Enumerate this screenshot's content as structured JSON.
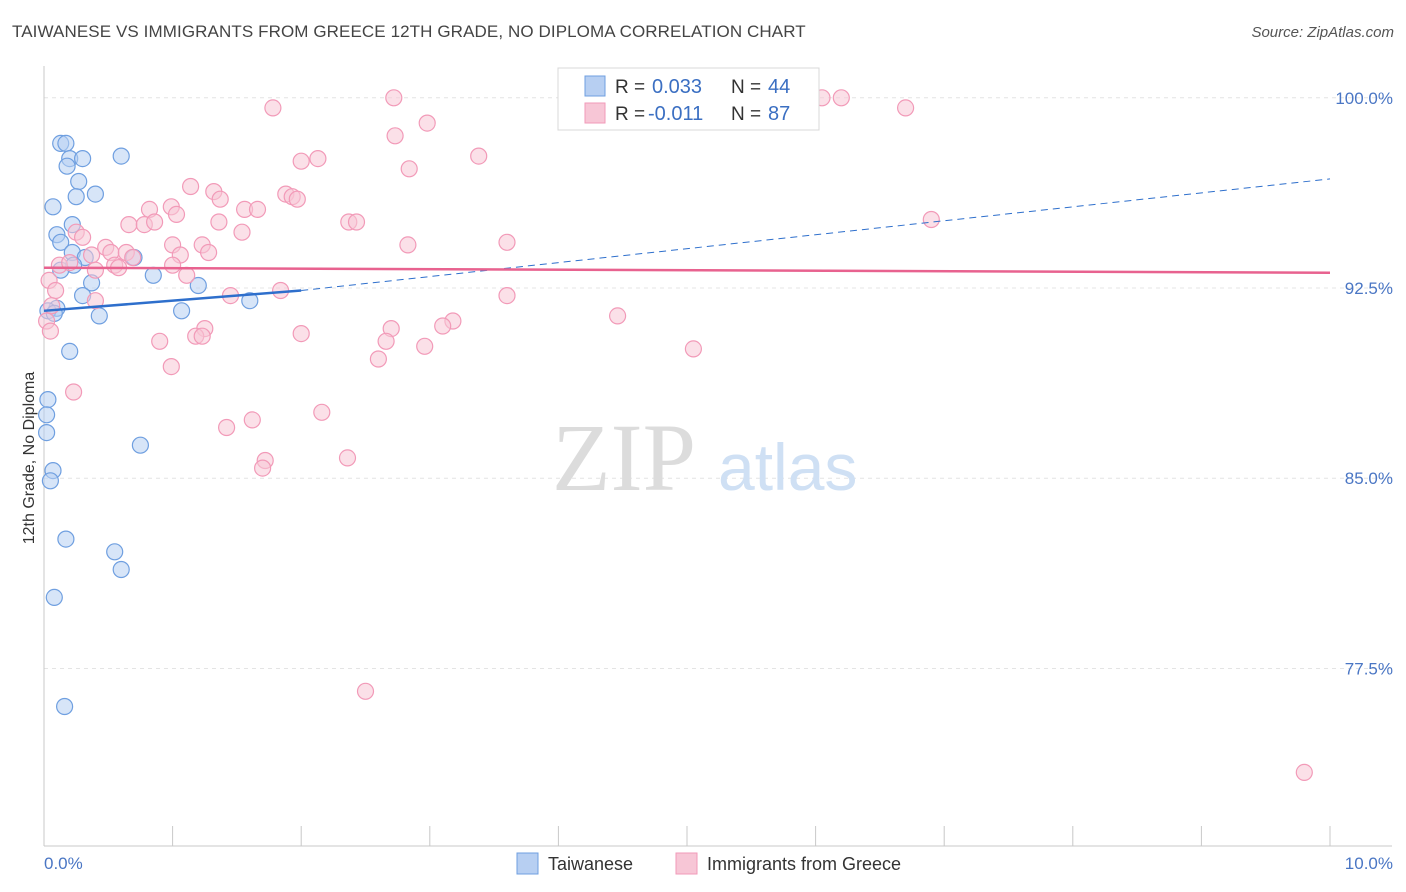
{
  "chart_data": {
    "type": "scatter",
    "title": "TAIWANESE VS IMMIGRANTS FROM GREECE 12TH GRADE, NO DIPLOMA CORRELATION CHART",
    "source": "Source: ZipAtlas.com",
    "xlabel": "",
    "ylabel": "12th Grade, No Diploma",
    "xlim": [
      0,
      10
    ],
    "ylim": [
      70.5,
      100.7
    ],
    "x_tick_labels": [
      "0.0%",
      "10.0%"
    ],
    "y_ticks": [
      77.5,
      85.0,
      92.5,
      100.0
    ],
    "y_tick_labels": [
      "77.5%",
      "85.0%",
      "92.5%",
      "100.0%"
    ],
    "grid": true,
    "watermark": {
      "zip": "ZIP",
      "atlas": "atlas"
    },
    "legend": {
      "position": "top-center",
      "rows": [
        {
          "r_label": "R =",
          "r_value": "0.033",
          "n_label": "N =",
          "n_value": "44"
        },
        {
          "r_label": "R =",
          "r_value": "-0.011",
          "n_label": "N =",
          "n_value": "87"
        }
      ]
    },
    "series": [
      {
        "name": "Taiwanese",
        "color": "#6f9fe0",
        "fill": "#b7cff2",
        "trend_color": "#2e6fcc",
        "trend": {
          "solid": [
            [
              0.0,
              91.6
            ],
            [
              2.0,
              92.4
            ]
          ],
          "dashed": [
            [
              2.0,
              92.4
            ],
            [
              10.0,
              96.8
            ]
          ]
        },
        "points": [
          [
            0.13,
            98.2
          ],
          [
            0.17,
            98.2
          ],
          [
            0.2,
            97.6
          ],
          [
            0.3,
            97.6
          ],
          [
            0.6,
            97.7
          ],
          [
            0.18,
            97.3
          ],
          [
            0.27,
            96.7
          ],
          [
            0.4,
            96.2
          ],
          [
            0.25,
            96.1
          ],
          [
            0.07,
            95.7
          ],
          [
            0.22,
            95.0
          ],
          [
            0.1,
            94.6
          ],
          [
            0.13,
            94.3
          ],
          [
            0.22,
            93.9
          ],
          [
            0.32,
            93.7
          ],
          [
            0.7,
            93.7
          ],
          [
            0.23,
            93.4
          ],
          [
            0.13,
            93.2
          ],
          [
            0.85,
            93.0
          ],
          [
            0.37,
            92.7
          ],
          [
            1.2,
            92.6
          ],
          [
            0.3,
            92.2
          ],
          [
            1.6,
            92.0
          ],
          [
            0.1,
            91.7
          ],
          [
            0.03,
            91.6
          ],
          [
            0.08,
            91.5
          ],
          [
            1.07,
            91.6
          ],
          [
            0.43,
            91.4
          ],
          [
            0.2,
            90.0
          ],
          [
            0.03,
            88.1
          ],
          [
            0.02,
            87.5
          ],
          [
            0.02,
            86.8
          ],
          [
            0.75,
            86.3
          ],
          [
            0.07,
            85.3
          ],
          [
            0.05,
            84.9
          ],
          [
            0.17,
            82.6
          ],
          [
            0.55,
            82.1
          ],
          [
            0.6,
            81.4
          ],
          [
            0.08,
            80.3
          ],
          [
            0.16,
            76.0
          ]
        ]
      },
      {
        "name": "Immigrants from Greece",
        "color": "#f29ab8",
        "fill": "#f7c6d6",
        "trend_color": "#e8628f",
        "trend": {
          "solid": [
            [
              0.0,
              93.3
            ],
            [
              10.0,
              93.1
            ]
          ]
        },
        "points": [
          [
            2.72,
            100.0
          ],
          [
            5.65,
            100.0
          ],
          [
            5.8,
            100.0
          ],
          [
            6.05,
            100.0
          ],
          [
            6.2,
            100.0
          ],
          [
            1.78,
            99.6
          ],
          [
            6.7,
            99.6
          ],
          [
            2.98,
            99.0
          ],
          [
            2.73,
            98.5
          ],
          [
            2.0,
            97.5
          ],
          [
            2.13,
            97.6
          ],
          [
            3.38,
            97.7
          ],
          [
            2.84,
            97.2
          ],
          [
            1.14,
            96.5
          ],
          [
            1.32,
            96.3
          ],
          [
            1.88,
            96.2
          ],
          [
            1.93,
            96.1
          ],
          [
            1.97,
            96.0
          ],
          [
            1.37,
            96.0
          ],
          [
            0.82,
            95.6
          ],
          [
            0.99,
            95.7
          ],
          [
            1.56,
            95.6
          ],
          [
            1.66,
            95.6
          ],
          [
            1.03,
            95.4
          ],
          [
            2.37,
            95.1
          ],
          [
            2.43,
            95.1
          ],
          [
            0.66,
            95.0
          ],
          [
            0.78,
            95.0
          ],
          [
            0.86,
            95.1
          ],
          [
            1.36,
            95.1
          ],
          [
            6.9,
            95.2
          ],
          [
            1.54,
            94.7
          ],
          [
            0.25,
            94.7
          ],
          [
            0.3,
            94.5
          ],
          [
            0.48,
            94.1
          ],
          [
            1.0,
            94.2
          ],
          [
            1.23,
            94.2
          ],
          [
            2.83,
            94.2
          ],
          [
            3.6,
            94.3
          ],
          [
            0.37,
            93.8
          ],
          [
            0.52,
            93.9
          ],
          [
            0.64,
            93.9
          ],
          [
            0.69,
            93.7
          ],
          [
            1.06,
            93.8
          ],
          [
            1.28,
            93.9
          ],
          [
            0.12,
            93.4
          ],
          [
            0.2,
            93.5
          ],
          [
            0.55,
            93.4
          ],
          [
            0.58,
            93.3
          ],
          [
            1.0,
            93.4
          ],
          [
            0.4,
            93.2
          ],
          [
            0.04,
            92.8
          ],
          [
            0.09,
            92.4
          ],
          [
            1.11,
            93.0
          ],
          [
            3.6,
            92.2
          ],
          [
            1.45,
            92.2
          ],
          [
            1.84,
            92.4
          ],
          [
            0.4,
            92.0
          ],
          [
            0.06,
            91.8
          ],
          [
            0.02,
            91.2
          ],
          [
            0.05,
            90.8
          ],
          [
            3.18,
            91.2
          ],
          [
            4.46,
            91.4
          ],
          [
            3.1,
            91.0
          ],
          [
            1.25,
            90.9
          ],
          [
            2.0,
            90.7
          ],
          [
            1.18,
            90.6
          ],
          [
            1.23,
            90.6
          ],
          [
            2.7,
            90.9
          ],
          [
            0.9,
            90.4
          ],
          [
            2.66,
            90.4
          ],
          [
            2.96,
            90.2
          ],
          [
            5.05,
            90.1
          ],
          [
            2.6,
            89.7
          ],
          [
            0.99,
            89.4
          ],
          [
            0.23,
            88.4
          ],
          [
            2.16,
            87.6
          ],
          [
            1.62,
            87.3
          ],
          [
            1.42,
            87.0
          ],
          [
            2.36,
            85.8
          ],
          [
            1.72,
            85.7
          ],
          [
            1.7,
            85.4
          ],
          [
            2.5,
            76.6
          ],
          [
            9.8,
            73.4
          ]
        ]
      }
    ],
    "bottom_legend": [
      "Taiwanese",
      "Immigrants from Greece"
    ]
  }
}
